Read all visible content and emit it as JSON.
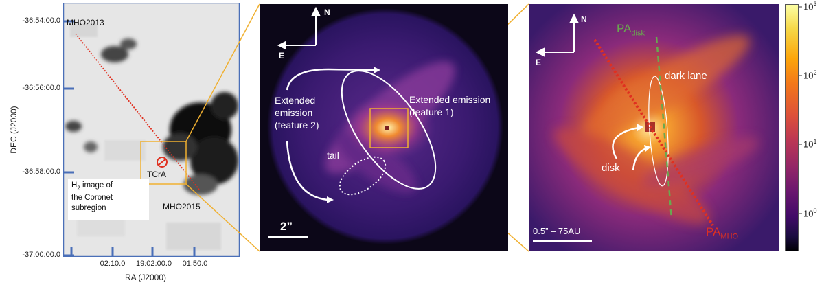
{
  "panel1": {
    "ylabel": "DEC (J2000)",
    "xlabel": "RA (J2000)",
    "yticks": [
      "-36:54:00.0",
      "-36:56:00.0",
      "-36:58:00.0",
      "-37:00:00.0"
    ],
    "xticks": [
      "02:10.0",
      "19:02:00.0",
      "01:50.0"
    ],
    "label_mho2013": "MHO2013",
    "label_mho2015": "MHO2015",
    "label_tcra": "TCrA",
    "caption_line1_sub_h": "H",
    "caption_line1_sub_2": "2",
    "caption_line1_rest": " image of",
    "caption_line2": "the Coronet",
    "caption_line3": "subregion"
  },
  "panel2": {
    "north": "N",
    "east": "E",
    "ext2_line1": "Extended",
    "ext2_line2": "emission",
    "ext2_line3": "(feature 2)",
    "ext1_line1": "Extended emission",
    "ext1_line2": "(feature 1)",
    "tail": "tail",
    "scale": "2”"
  },
  "panel3": {
    "north": "N",
    "east": "E",
    "pa_disk_main": "PA",
    "pa_disk_sub": "disk",
    "dark_lane": "dark lane",
    "disk": "disk",
    "pa_mho_main": "PA",
    "pa_mho_sub": "MHO",
    "scale": "0.5” – 75AU"
  },
  "colorbar": {
    "labels": [
      {
        "base": "10",
        "exp": "3"
      },
      {
        "base": "10",
        "exp": "2"
      },
      {
        "base": "10",
        "exp": "1"
      },
      {
        "base": "10",
        "exp": "0"
      }
    ]
  },
  "colors": {
    "frame_blue": "#4a6fb8",
    "zoom_orange": "#f0b030",
    "red_line": "#e03020",
    "green_dash": "#6aa84f"
  }
}
